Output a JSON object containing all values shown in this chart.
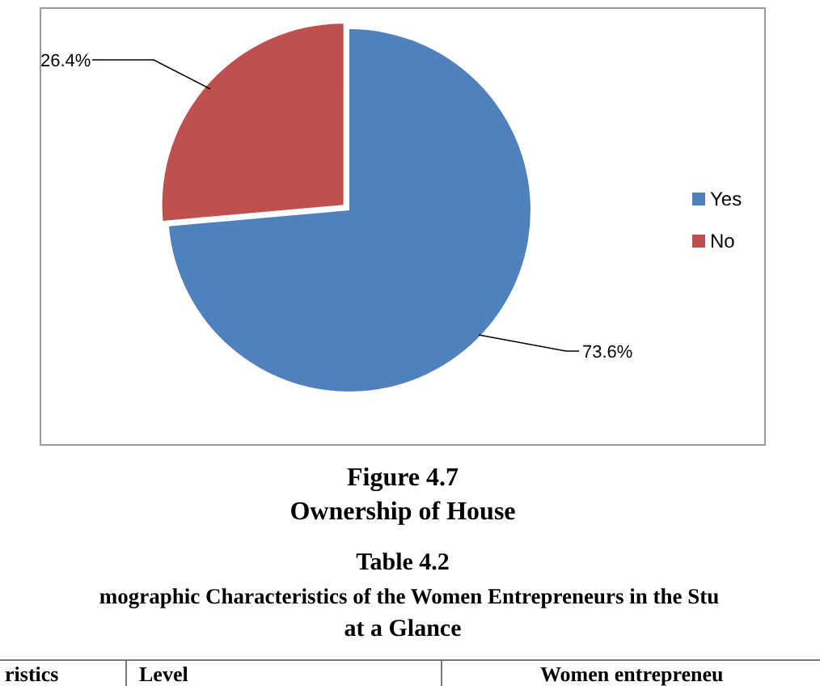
{
  "chart_data": {
    "type": "pie",
    "title": "Figure 4.7",
    "subtitle": "Ownership of House",
    "categories": [
      "Yes",
      "No"
    ],
    "values": [
      73.6,
      26.4
    ],
    "colors": [
      "#4f81bd",
      "#c0504d"
    ],
    "value_labels": [
      "73.6%",
      "26.4%"
    ],
    "legend": "right",
    "annotations": [
      "Table 4.2",
      "mographic Characteristics of the Women Entrepreneurs in the Stu",
      "at a Glance",
      "ristics",
      "Level",
      "Women entrepreneu"
    ]
  }
}
